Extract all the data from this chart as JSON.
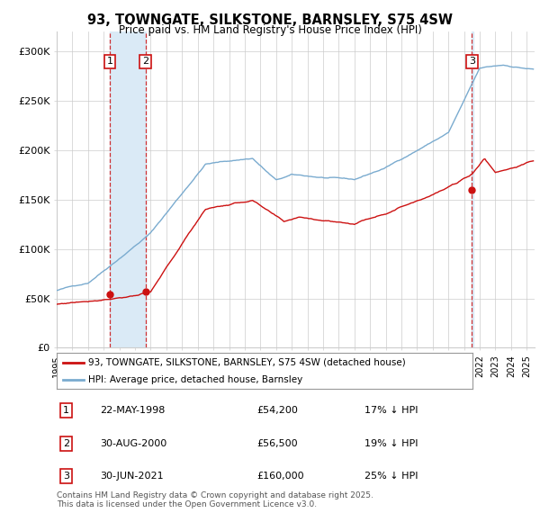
{
  "title": "93, TOWNGATE, SILKSTONE, BARNSLEY, S75 4SW",
  "subtitle": "Price paid vs. HM Land Registry's House Price Index (HPI)",
  "ylim": [
    0,
    320000
  ],
  "yticks": [
    0,
    50000,
    100000,
    150000,
    200000,
    250000,
    300000
  ],
  "ytick_labels": [
    "£0",
    "£50K",
    "£100K",
    "£150K",
    "£200K",
    "£250K",
    "£300K"
  ],
  "hpi_color": "#7aabcf",
  "price_color": "#cc1111",
  "marker_color": "#cc1111",
  "vline_color": "#cc1111",
  "shade_color": "#daeaf6",
  "transaction_dates": [
    "1998-05-22",
    "2000-08-30",
    "2021-06-30"
  ],
  "transaction_prices": [
    54200,
    56500,
    160000
  ],
  "transaction_labels": [
    "1",
    "2",
    "3"
  ],
  "legend_price_label": "93, TOWNGATE, SILKSTONE, BARNSLEY, S75 4SW (detached house)",
  "legend_hpi_label": "HPI: Average price, detached house, Barnsley",
  "table_rows": [
    [
      "1",
      "22-MAY-1998",
      "£54,200",
      "17% ↓ HPI"
    ],
    [
      "2",
      "30-AUG-2000",
      "£56,500",
      "19% ↓ HPI"
    ],
    [
      "3",
      "30-JUN-2021",
      "£160,000",
      "25% ↓ HPI"
    ]
  ],
  "footnote": "Contains HM Land Registry data © Crown copyright and database right 2025.\nThis data is licensed under the Open Government Licence v3.0.",
  "bg_color": "#ffffff",
  "grid_color": "#cccccc",
  "xlim_start": 1995,
  "xlim_end": 2025.5
}
